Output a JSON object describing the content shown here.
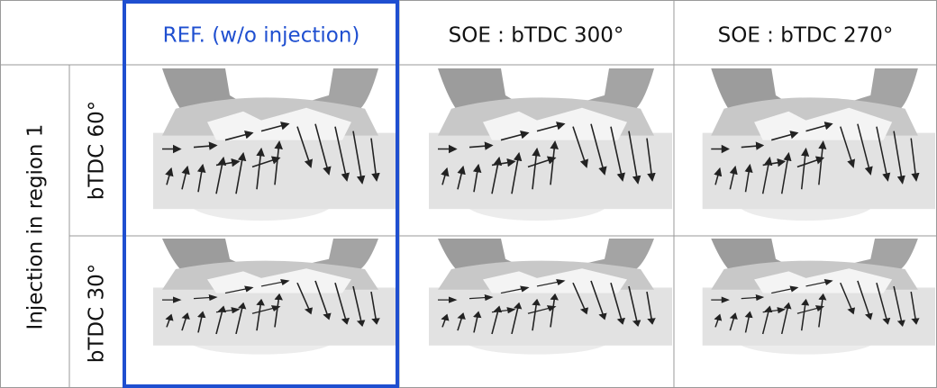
{
  "header": {
    "columns": [
      "REF. (w/o injection)",
      "SOE : bTDC 300°",
      "SOE : bTDC 270°"
    ]
  },
  "group_label": "Injection in region 1",
  "rows": [
    "bTDC 60°",
    "bTDC 30°"
  ]
}
